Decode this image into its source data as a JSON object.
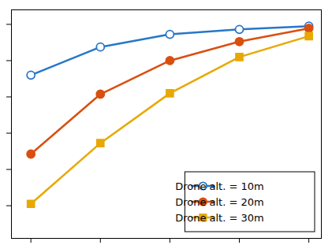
{
  "chart_data": {
    "type": "line",
    "x": [
      1,
      2,
      3,
      4,
      5
    ],
    "series": [
      {
        "name": "Drone alt. = 10m",
        "color": "#2777c8",
        "marker": "circle-open",
        "values": [
          0.72,
          0.875,
          0.945,
          0.972,
          0.99
        ]
      },
      {
        "name": "Drone alt. = 20m",
        "color": "#d94f10",
        "marker": "circle",
        "values": [
          0.285,
          0.615,
          0.8,
          0.905,
          0.978
        ]
      },
      {
        "name": "Drone alt. = 30m",
        "color": "#e8a800",
        "marker": "square",
        "values": [
          0.01,
          0.345,
          0.62,
          0.82,
          0.935
        ]
      }
    ],
    "xlim": [
      0.72,
      5.18
    ],
    "xticks": [
      1,
      2,
      3,
      4,
      5
    ],
    "ylim": [
      -0.18,
      1.08
    ],
    "yticks": [
      0,
      0.2,
      0.4,
      0.6,
      0.8,
      1.0
    ],
    "grid": false,
    "legend": "lower right",
    "tick_labels": false
  }
}
